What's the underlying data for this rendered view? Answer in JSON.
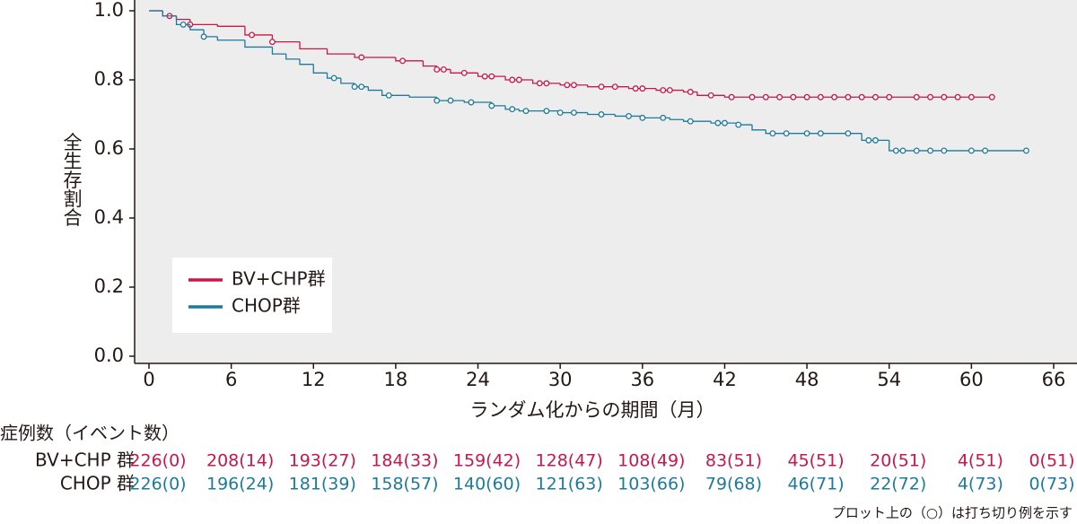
{
  "chart_data": {
    "type": "km",
    "y_title": "全生存割合",
    "x_title": "ランダム化からの期間（月）",
    "xlim": [
      -1.1,
      67.5
    ],
    "ylim": [
      0,
      1
    ],
    "xticks": [
      0,
      6,
      12,
      18,
      24,
      30,
      36,
      42,
      48,
      54,
      60,
      66
    ],
    "yticks": [
      {
        "value": 0,
        "label": "0.0"
      },
      0.2,
      0.4,
      0.6,
      0.8,
      {
        "value": 1,
        "label": "1.0"
      }
    ],
    "series": [
      {
        "name": "BV+CHP群",
        "color": "#c8174a",
        "x": [
          0,
          1,
          2,
          3,
          5,
          7,
          9,
          11,
          13,
          15,
          18,
          20,
          21,
          22,
          24,
          26,
          28,
          30,
          32,
          35,
          37,
          39,
          40,
          42,
          61.5
        ],
        "values": [
          1.0,
          0.985,
          0.975,
          0.96,
          0.955,
          0.93,
          0.91,
          0.89,
          0.875,
          0.865,
          0.855,
          0.84,
          0.83,
          0.82,
          0.81,
          0.8,
          0.79,
          0.785,
          0.78,
          0.775,
          0.77,
          0.765,
          0.755,
          0.75,
          0.75
        ],
        "censored_x": [
          1.5,
          3,
          7.5,
          9,
          15.5,
          18.5,
          21,
          21.5,
          23,
          24.5,
          25,
          26.5,
          27,
          28.5,
          29,
          30.5,
          31,
          33,
          34,
          35.5,
          36,
          37.5,
          38,
          39.5,
          41,
          42.5,
          44,
          45,
          46,
          47,
          48,
          49,
          50,
          51,
          52,
          53,
          54,
          56,
          57,
          58,
          59,
          60,
          61.5
        ],
        "censored_y": [
          0.985,
          0.96,
          0.93,
          0.91,
          0.865,
          0.855,
          0.83,
          0.83,
          0.82,
          0.81,
          0.81,
          0.8,
          0.8,
          0.79,
          0.79,
          0.785,
          0.785,
          0.78,
          0.78,
          0.775,
          0.775,
          0.77,
          0.77,
          0.765,
          0.755,
          0.75,
          0.75,
          0.75,
          0.75,
          0.75,
          0.75,
          0.75,
          0.75,
          0.75,
          0.75,
          0.75,
          0.75,
          0.75,
          0.75,
          0.75,
          0.75,
          0.75,
          0.75
        ]
      },
      {
        "name": "CHOP群",
        "color": "#1e7a9a",
        "x": [
          0,
          1,
          2,
          3,
          4,
          5,
          7,
          9,
          10,
          11,
          12,
          13,
          14,
          15,
          16,
          17,
          19,
          21,
          23,
          25,
          26,
          27,
          30,
          32,
          34,
          36,
          38,
          39,
          41,
          43,
          44,
          45,
          52,
          54,
          64
        ],
        "values": [
          1.0,
          0.985,
          0.96,
          0.945,
          0.925,
          0.915,
          0.895,
          0.875,
          0.86,
          0.845,
          0.82,
          0.805,
          0.79,
          0.78,
          0.77,
          0.755,
          0.75,
          0.74,
          0.735,
          0.725,
          0.715,
          0.71,
          0.705,
          0.7,
          0.695,
          0.69,
          0.685,
          0.68,
          0.675,
          0.67,
          0.655,
          0.645,
          0.625,
          0.595,
          0.595
        ],
        "censored_x": [
          2.5,
          4,
          13.5,
          15,
          15.5,
          17.5,
          21,
          22,
          23.5,
          25,
          26.5,
          27.5,
          29,
          30,
          31,
          33,
          35,
          36,
          37.5,
          39.5,
          41.5,
          42,
          43,
          45.5,
          46.5,
          48,
          49,
          51,
          52.5,
          53,
          54.5,
          55,
          56,
          57,
          58,
          60,
          61,
          64
        ],
        "censored_y": [
          0.96,
          0.925,
          0.805,
          0.78,
          0.78,
          0.755,
          0.74,
          0.74,
          0.735,
          0.725,
          0.715,
          0.71,
          0.71,
          0.705,
          0.705,
          0.7,
          0.695,
          0.69,
          0.69,
          0.68,
          0.675,
          0.675,
          0.67,
          0.645,
          0.645,
          0.645,
          0.645,
          0.645,
          0.625,
          0.625,
          0.595,
          0.595,
          0.595,
          0.595,
          0.595,
          0.595,
          0.595,
          0.595
        ]
      }
    ]
  },
  "risk_table": {
    "title": "症例数（イベント数）",
    "rows": [
      {
        "label": "BV+CHP 群",
        "cells": [
          "226(0)",
          "208(14)",
          "193(27)",
          "184(33)",
          "159(42)",
          "128(47)",
          "108(49)",
          "83(51)",
          "45(51)",
          "20(51)",
          "4(51)",
          "0(51)"
        ]
      },
      {
        "label": "CHOP 群",
        "cells": [
          "226(0)",
          "196(24)",
          "181(39)",
          "158(57)",
          "140(60)",
          "121(63)",
          "103(66)",
          "79(68)",
          "46(71)",
          "22(72)",
          "4(73)",
          "0(73)"
        ]
      }
    ]
  },
  "footnote": "プロット上の（○）は打ち切り例を示す"
}
